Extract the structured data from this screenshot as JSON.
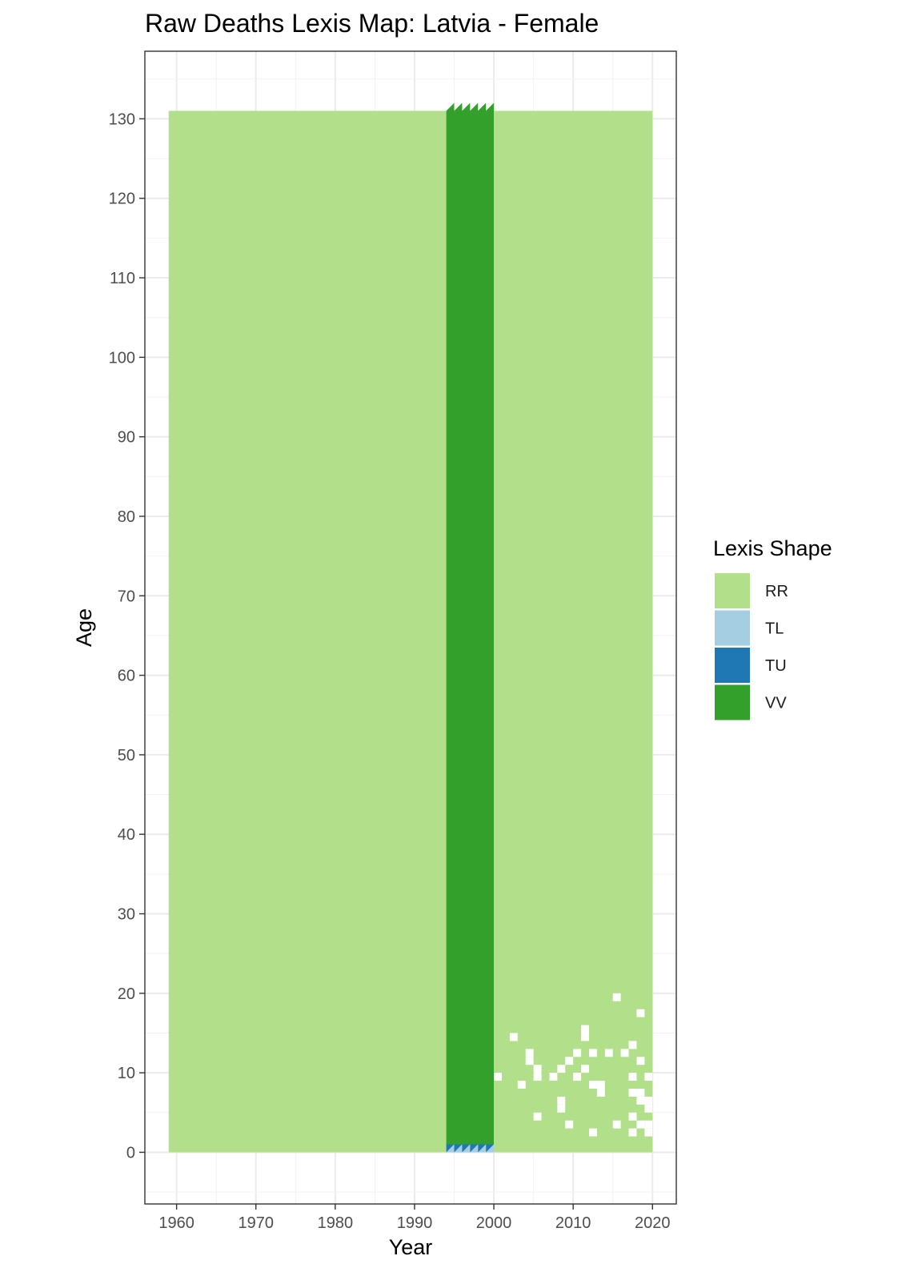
{
  "chart_data": {
    "type": "heatmap",
    "title": "Raw Deaths Lexis Map: Latvia - Female",
    "xlabel": "Year",
    "ylabel": "Age",
    "xlim": [
      1956,
      2023
    ],
    "ylim": [
      -6.5,
      138.5
    ],
    "x_ticks": [
      1960,
      1970,
      1980,
      1990,
      2000,
      2010,
      2020
    ],
    "y_ticks": [
      0,
      10,
      20,
      30,
      40,
      50,
      60,
      70,
      80,
      90,
      100,
      110,
      120,
      130
    ],
    "grid": true,
    "legend_position": "right",
    "legend": {
      "title": "Lexis Shape",
      "items": [
        {
          "label": "RR",
          "color": "#b2df8a"
        },
        {
          "label": "TL",
          "color": "#a6cee3"
        },
        {
          "label": "TU",
          "color": "#1f78b4"
        },
        {
          "label": "VV",
          "color": "#33a02c"
        }
      ]
    },
    "regions": [
      {
        "shape": "RR",
        "x": [
          1959,
          1994
        ],
        "y": [
          0,
          131
        ]
      },
      {
        "shape": "VV",
        "x": [
          1994,
          2000
        ],
        "y": [
          1,
          131
        ]
      },
      {
        "shape": "TL",
        "x": [
          1994,
          2000
        ],
        "y": [
          0,
          1
        ]
      },
      {
        "shape": "TU",
        "x": [
          1994,
          2000
        ],
        "y": [
          0,
          1
        ]
      },
      {
        "shape": "RR",
        "x": [
          2000,
          2020
        ],
        "y": [
          0,
          131
        ]
      }
    ],
    "missing_cells": [
      [
        2000,
        9
      ],
      [
        2002,
        14
      ],
      [
        2003,
        8
      ],
      [
        2004,
        11
      ],
      [
        2004,
        12
      ],
      [
        2005,
        9
      ],
      [
        2005,
        10
      ],
      [
        2005,
        4
      ],
      [
        2007,
        9
      ],
      [
        2008,
        10
      ],
      [
        2008,
        5
      ],
      [
        2008,
        6
      ],
      [
        2009,
        11
      ],
      [
        2009,
        3
      ],
      [
        2010,
        12
      ],
      [
        2010,
        9
      ],
      [
        2011,
        14
      ],
      [
        2011,
        15
      ],
      [
        2011,
        10
      ],
      [
        2012,
        12
      ],
      [
        2012,
        8
      ],
      [
        2012,
        2
      ],
      [
        2013,
        8
      ],
      [
        2013,
        7
      ],
      [
        2014,
        12
      ],
      [
        2015,
        19
      ],
      [
        2015,
        3
      ],
      [
        2016,
        12
      ],
      [
        2017,
        13
      ],
      [
        2017,
        9
      ],
      [
        2017,
        7
      ],
      [
        2017,
        4
      ],
      [
        2017,
        2
      ],
      [
        2018,
        17
      ],
      [
        2018,
        11
      ],
      [
        2018,
        7
      ],
      [
        2018,
        6
      ],
      [
        2018,
        3
      ],
      [
        2019,
        9
      ],
      [
        2019,
        6
      ],
      [
        2019,
        5
      ],
      [
        2019,
        3
      ],
      [
        2019,
        2
      ]
    ]
  }
}
